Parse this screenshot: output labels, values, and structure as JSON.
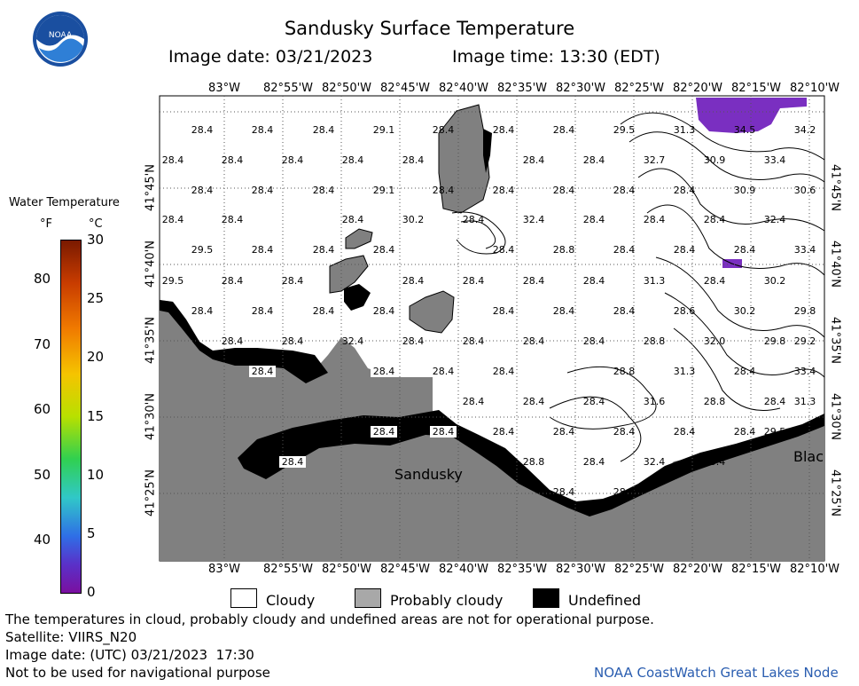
{
  "header": {
    "title": "Sandusky Surface Temperature",
    "date_label": "Image date: 03/21/2023",
    "time_label": "Image time: 13:30 (EDT)",
    "logo_text": "NOAA"
  },
  "map": {
    "lon_labels": [
      "83°W",
      "82°55'W",
      "82°50'W",
      "82°45'W",
      "82°40'W",
      "82°35'W",
      "82°30'W",
      "82°25'W",
      "82°20'W",
      "82°15'W",
      "82°10'W"
    ],
    "lat_labels": [
      "41°45'N",
      "41°40'N",
      "41°35'N",
      "41°30'N",
      "41°25'N"
    ],
    "place_labels": {
      "sandusky": "Sandusky",
      "black": "Blac"
    },
    "colors": {
      "land": "#808080",
      "water": "#ffffff",
      "undefined": "#000000",
      "probably_cloudy": "#808080",
      "warm_patch": "#7a2fc1"
    },
    "temperature_labels": [
      "28.4",
      "28.4",
      "28.4",
      "29.1",
      "28.4",
      "28.4",
      "28.4",
      "29.5",
      "31.3",
      "34.5",
      "34.2",
      "28.4",
      "28.4",
      "28.4",
      "28.4",
      "28.4",
      "28.4",
      "28.4",
      "32.7",
      "30.9",
      "33.4",
      "28.4",
      "28.4",
      "28.4",
      "29.1",
      "28.4",
      "28.4",
      "28.4",
      "28.4",
      "28.4",
      "30.9",
      "30.6",
      "28.4",
      "28.4",
      "28.4",
      "30.2",
      "28.4",
      "32.4",
      "28.4",
      "28.4",
      "28.4",
      "32.4",
      "29.5",
      "28.4",
      "28.4",
      "28.4",
      "28.4",
      "28.8",
      "28.4",
      "28.4",
      "28.4",
      "33.4",
      "29.5",
      "28.4",
      "28.4",
      "28.4",
      "28.4",
      "28.4",
      "28.4",
      "31.3",
      "28.4",
      "30.2",
      "28.4",
      "28.4",
      "28.4",
      "28.4",
      "28.4",
      "28.4",
      "28.4",
      "28.6",
      "30.2",
      "29.8",
      "28.4",
      "28.4",
      "32.4",
      "28.4",
      "28.4",
      "28.4",
      "28.4",
      "28.8",
      "32.0",
      "29.8",
      "29.2",
      "28.4",
      "28.4",
      "28.4",
      "28.4",
      "28.8",
      "31.3",
      "28.4",
      "33.4",
      "28.4",
      "28.4",
      "28.4",
      "31.6",
      "28.8",
      "28.4",
      "31.3",
      "28.4",
      "28.4",
      "28.4",
      "28.4",
      "28.4",
      "28.4",
      "28.4",
      "29.5",
      "28.4",
      "28.8",
      "28.4",
      "32.4",
      "33.4",
      "28.4",
      "28.8"
    ]
  },
  "scale": {
    "title": "Water Temperature",
    "unit_f": "°F",
    "unit_c": "°C",
    "f_ticks": [
      "80",
      "70",
      "60",
      "50",
      "40"
    ],
    "c_ticks": [
      "30",
      "25",
      "20",
      "15",
      "10",
      "5",
      "0"
    ]
  },
  "legend": {
    "cloudy": "Cloudy",
    "probably_cloudy": "Probably cloudy",
    "undefined": "Undefined"
  },
  "footer": {
    "disclaimer": "The temperatures in cloud, probably cloudy and undefined areas are not for operational purpose.",
    "satellite": "Satellite: VIIRS_N20",
    "utc_date": "Image date: (UTC) 03/21/2023  17:30",
    "nav_warning": "Not to be used for navigational purpose",
    "credit": "NOAA CoastWatch Great Lakes Node"
  }
}
